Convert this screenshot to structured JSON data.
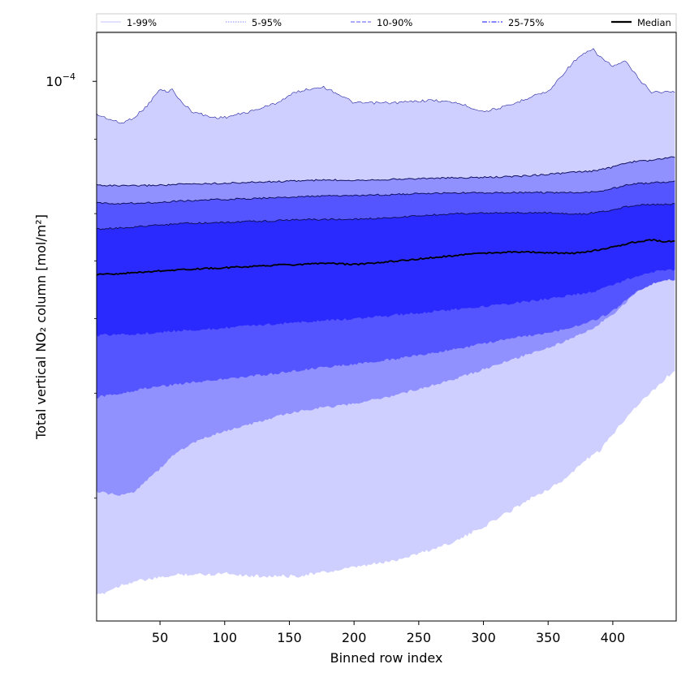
{
  "chart_data": {
    "type": "area",
    "xlabel": "Binned row index",
    "ylabel": "Total vertical NO₂ column [mol/m²]",
    "xlim": [
      1,
      449
    ],
    "ylim_log10": [
      -4.905,
      -3.918
    ],
    "y_scale": "log",
    "x_ticks": [
      50,
      100,
      150,
      200,
      250,
      300,
      350,
      400
    ],
    "y_major_ticks": [
      {
        "value_log10": -4,
        "label": "10⁻⁴",
        "base": "10",
        "exponent": "−4"
      }
    ],
    "y_minor_ticks_log10": [
      -4.0969,
      -4.2218,
      -4.301,
      -4.3979,
      -4.5229,
      -4.699
    ],
    "grid": false,
    "legend": {
      "placement": "top",
      "entries": [
        {
          "label": "1-99%",
          "color": "#cfcfff",
          "style": "solid"
        },
        {
          "label": "5-95%",
          "color": "#9f9fff",
          "style": "dotted"
        },
        {
          "label": "10-90%",
          "color": "#7a7aff",
          "style": "dashed"
        },
        {
          "label": "25-75%",
          "color": "#3d3dff",
          "style": "dashdot"
        },
        {
          "label": "Median",
          "color": "#000000",
          "style": "solid"
        }
      ]
    },
    "x": [
      1,
      20,
      30,
      40,
      50,
      55,
      60,
      65,
      75,
      90,
      100,
      120,
      140,
      155,
      175,
      185,
      200,
      230,
      260,
      280,
      300,
      320,
      340,
      350,
      360,
      370,
      380,
      385,
      390,
      400,
      410,
      420,
      430,
      440,
      449
    ],
    "bands": [
      {
        "name": "1-99%",
        "color": "#cfcfff",
        "upper": [
          8.8e-05,
          8.5e-05,
          8.7e-05,
          9.1e-05,
          9.7e-05,
          9.6e-05,
          9.7e-05,
          9.3e-05,
          8.9e-05,
          8.7e-05,
          8.7e-05,
          8.9e-05,
          9.2e-05,
          9.6e-05,
          9.8e-05,
          9.6e-05,
          9.2e-05,
          9.2e-05,
          9.3e-05,
          9.2e-05,
          8.9e-05,
          9.1e-05,
          9.5e-05,
          9.6e-05,
          0.000102,
          0.000108,
          0.000112,
          0.000113,
          0.00011,
          0.000106,
          0.000108,
          0.000101,
          9.6e-05,
          9.6e-05,
          9.6e-05
        ],
        "lower": [
          1.37e-05,
          1.43e-05,
          1.45e-05,
          1.46e-05,
          1.47e-05,
          1.48e-05,
          1.48e-05,
          1.49e-05,
          1.49e-05,
          1.49e-05,
          1.5e-05,
          1.48e-05,
          1.48e-05,
          1.48e-05,
          1.5e-05,
          1.51e-05,
          1.53e-05,
          1.57e-05,
          1.64e-05,
          1.7e-05,
          1.79e-05,
          1.9e-05,
          2.02e-05,
          2.07e-05,
          2.13e-05,
          2.22e-05,
          2.33e-05,
          2.36e-05,
          2.4e-05,
          2.56e-05,
          2.73e-05,
          2.88e-05,
          3.01e-05,
          3.17e-05,
          3.28e-05
        ]
      },
      {
        "name": "5-95%",
        "color": "#9090ff",
        "upper": [
          6.7e-05,
          6.68e-05,
          6.68e-05,
          6.69e-05,
          6.7e-05,
          6.7e-05,
          6.71e-05,
          6.72e-05,
          6.73e-05,
          6.74e-05,
          6.75e-05,
          6.77e-05,
          6.79e-05,
          6.81e-05,
          6.83e-05,
          6.83e-05,
          6.83e-05,
          6.85e-05,
          6.88e-05,
          6.89e-05,
          6.9e-05,
          6.92e-05,
          6.96e-05,
          6.99e-05,
          7.01e-05,
          7.04e-05,
          7.06e-05,
          7.08e-05,
          7.1e-05,
          7.18e-05,
          7.3e-05,
          7.35e-05,
          7.37e-05,
          7.43e-05,
          7.48e-05
        ],
        "lower": [
          2.05e-05,
          2.02e-05,
          2.05e-05,
          2.15e-05,
          2.24e-05,
          2.3e-05,
          2.36e-05,
          2.4e-05,
          2.47e-05,
          2.55e-05,
          2.59e-05,
          2.66e-05,
          2.74e-05,
          2.79e-05,
          2.84e-05,
          2.85e-05,
          2.88e-05,
          2.97e-05,
          3.09e-05,
          3.18e-05,
          3.29e-05,
          3.4e-05,
          3.52e-05,
          3.58e-05,
          3.64e-05,
          3.72e-05,
          3.81e-05,
          3.86e-05,
          3.93e-05,
          4.06e-05,
          4.25e-05,
          4.48e-05,
          4.69e-05,
          4.8e-05,
          4.85e-05
        ]
      },
      {
        "name": "10-90%",
        "color": "#5555ff",
        "upper": [
          6.25e-05,
          6.24e-05,
          6.25e-05,
          6.26e-05,
          6.27e-05,
          6.28e-05,
          6.29e-05,
          6.3e-05,
          6.31e-05,
          6.33e-05,
          6.34e-05,
          6.36e-05,
          6.38e-05,
          6.4e-05,
          6.42e-05,
          6.43e-05,
          6.43e-05,
          6.46e-05,
          6.49e-05,
          6.5e-05,
          6.5e-05,
          6.51e-05,
          6.51e-05,
          6.51e-05,
          6.51e-05,
          6.51e-05,
          6.52e-05,
          6.53e-05,
          6.55e-05,
          6.61e-05,
          6.7e-05,
          6.74e-05,
          6.75e-05,
          6.78e-05,
          6.8e-05
        ],
        "lower": [
          2.95e-05,
          3e-05,
          3.03e-05,
          3.06e-05,
          3.08e-05,
          3.09e-05,
          3.1e-05,
          3.11e-05,
          3.13e-05,
          3.15e-05,
          3.17e-05,
          3.2e-05,
          3.24e-05,
          3.27e-05,
          3.31e-05,
          3.33e-05,
          3.35e-05,
          3.42e-05,
          3.5e-05,
          3.56e-05,
          3.63e-05,
          3.7e-05,
          3.76e-05,
          3.79e-05,
          3.83e-05,
          3.88e-05,
          3.94e-05,
          3.97e-05,
          4.01e-05,
          4.12e-05,
          4.29e-05,
          4.46e-05,
          4.57e-05,
          4.63e-05,
          4.66e-05
        ]
      },
      {
        "name": "25-75%",
        "color": "#2a2aff",
        "upper": [
          5.65e-05,
          5.68e-05,
          5.7e-05,
          5.72e-05,
          5.74e-05,
          5.75e-05,
          5.76e-05,
          5.77e-05,
          5.78e-05,
          5.79e-05,
          5.8e-05,
          5.82e-05,
          5.84e-05,
          5.86e-05,
          5.87e-05,
          5.87e-05,
          5.87e-05,
          5.91e-05,
          5.97e-05,
          6e-05,
          6.01e-05,
          6.02e-05,
          6.02e-05,
          6.02e-05,
          6e-05,
          5.99e-05,
          6e-05,
          6.02e-05,
          6.04e-05,
          6.09e-05,
          6.16e-05,
          6.2e-05,
          6.21e-05,
          6.22e-05,
          6.23e-05
        ],
        "lower": [
          3.75e-05,
          3.76e-05,
          3.77e-05,
          3.78e-05,
          3.79e-05,
          3.8e-05,
          3.81e-05,
          3.82e-05,
          3.83e-05,
          3.84e-05,
          3.86e-05,
          3.89e-05,
          3.92e-05,
          3.94e-05,
          3.97e-05,
          3.98e-05,
          4e-05,
          4.05e-05,
          4.11e-05,
          4.15e-05,
          4.19e-05,
          4.24e-05,
          4.29e-05,
          4.32e-05,
          4.35e-05,
          4.39e-05,
          4.42e-05,
          4.44e-05,
          4.47e-05,
          4.55e-05,
          4.65e-05,
          4.73e-05,
          4.79e-05,
          4.82e-05,
          4.84e-05
        ]
      }
    ],
    "median": {
      "name": "Median",
      "color": "#000000",
      "values": [
        4.74e-05,
        4.76e-05,
        4.78e-05,
        4.79e-05,
        4.81e-05,
        4.81e-05,
        4.82e-05,
        4.83e-05,
        4.84e-05,
        4.86e-05,
        4.87e-05,
        4.89e-05,
        4.92e-05,
        4.93e-05,
        4.95e-05,
        4.95e-05,
        4.93e-05,
        4.99e-05,
        5.06e-05,
        5.11e-05,
        5.15e-05,
        5.17e-05,
        5.17e-05,
        5.16e-05,
        5.15e-05,
        5.15e-05,
        5.18e-05,
        5.2e-05,
        5.22e-05,
        5.27e-05,
        5.34e-05,
        5.39e-05,
        5.42e-05,
        5.39e-05,
        5.39e-05
      ]
    }
  }
}
